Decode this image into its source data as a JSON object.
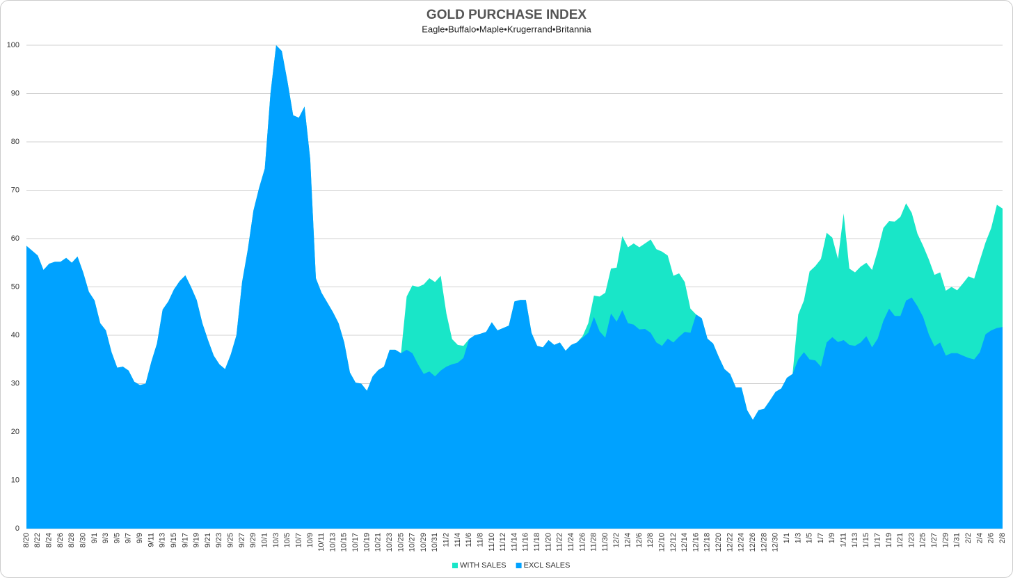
{
  "chart_data": {
    "type": "area",
    "title": "GOLD PURCHASE INDEX",
    "subtitle": "Eagle•Buffalo•Maple•Krugerrand•Britannia",
    "categories": [
      "8/20",
      null,
      "8/22",
      null,
      "8/24",
      null,
      "8/26",
      null,
      "8/28",
      null,
      "8/30",
      null,
      "9/1",
      null,
      "9/3",
      null,
      "9/5",
      null,
      "9/7",
      null,
      "9/9",
      null,
      "9/11",
      null,
      "9/13",
      null,
      "9/15",
      null,
      "9/17",
      null,
      "9/19",
      null,
      "9/21",
      null,
      "9/23",
      null,
      "9/25",
      null,
      "9/27",
      null,
      "9/29",
      null,
      "10/1",
      null,
      "10/3",
      null,
      "10/5",
      null,
      "10/7",
      null,
      "10/9",
      null,
      "10/11",
      null,
      "10/13",
      null,
      "10/15",
      null,
      "10/17",
      null,
      "10/19",
      null,
      "10/21",
      null,
      "10/23",
      null,
      "10/25",
      null,
      "10/27",
      null,
      "10/29",
      null,
      "10/31",
      null,
      "11/2",
      null,
      "11/4",
      null,
      "11/6",
      null,
      "11/8",
      null,
      "11/10",
      null,
      "11/12",
      null,
      "11/14",
      null,
      "11/16",
      null,
      "11/18",
      null,
      "11/20",
      null,
      "11/22",
      null,
      "11/24",
      null,
      "11/26",
      null,
      "11/28",
      null,
      "11/30",
      null,
      "12/2",
      null,
      "12/4",
      null,
      "12/6",
      null,
      "12/8",
      null,
      "12/10",
      null,
      "12/12",
      null,
      "12/14",
      null,
      "12/16",
      null,
      "12/18",
      null,
      "12/20",
      null,
      "12/22",
      null,
      "12/24",
      null,
      "12/26",
      null,
      "12/28",
      null,
      "12/30",
      null,
      "1/1",
      null,
      "1/3",
      null,
      "1/5",
      null,
      "1/7",
      null,
      "1/9",
      null,
      "1/11",
      null,
      "1/13",
      null,
      "1/15",
      null,
      "1/17",
      null,
      "1/19",
      null,
      "1/21",
      null,
      "1/23",
      null,
      "1/25",
      null,
      "1/27",
      null,
      "1/29",
      null,
      "1/31",
      null,
      "2/2",
      null,
      "2/4",
      null,
      "2/6",
      null,
      "2/8"
    ],
    "series": [
      {
        "name": "WITH SALES",
        "color": "#19e6c8",
        "values": [
          58.5,
          57.5,
          56.5,
          53.5,
          54.8,
          55.2,
          55.2,
          56,
          55,
          56.3,
          53,
          49,
          47.2,
          42.5,
          41,
          36.5,
          33.3,
          33.5,
          32.7,
          30.4,
          29.7,
          30,
          34.5,
          38.3,
          45.3,
          47,
          49.5,
          51.2,
          52.4,
          50,
          47.3,
          42.5,
          39,
          35.8,
          34,
          33,
          36,
          40,
          51,
          57.7,
          65.8,
          70.5,
          74.5,
          90,
          100,
          98.8,
          92.5,
          85.5,
          85,
          87.3,
          76.5,
          51.8,
          48.8,
          46.8,
          44.8,
          42.5,
          38.5,
          32.3,
          30.2,
          30,
          28.5,
          31.5,
          32.8,
          33.5,
          37,
          37,
          36.3,
          48,
          50.3,
          50,
          50.5,
          51.8,
          51,
          52.3,
          44.5,
          39.2,
          38,
          37.8,
          39.2,
          40,
          40.3,
          40.7,
          42.7,
          41,
          41.5,
          42,
          47,
          47.3,
          47.3,
          40.5,
          37.8,
          37.5,
          39,
          38,
          38.5,
          36.8,
          38,
          38.5,
          39.8,
          42.5,
          48.2,
          48,
          48.8,
          53.8,
          54,
          60.5,
          58.2,
          59,
          58.2,
          59,
          59.8,
          57.8,
          57.3,
          56.5,
          52.3,
          52.8,
          51,
          45.5,
          44.3,
          43.5,
          39.3,
          38.3,
          35.5,
          33,
          32,
          29.2,
          29.2,
          24.5,
          22.5,
          24.5,
          24.8,
          26.5,
          28.3,
          29,
          31.2,
          32,
          44.3,
          47.2,
          53.2,
          54.3,
          55.8,
          61.2,
          60.2,
          55.8,
          65.2,
          53.8,
          53,
          54.2,
          55,
          53.5,
          57.5,
          62.2,
          63.6,
          63.5,
          64.5,
          67.3,
          65.3,
          61,
          58.5,
          55.7,
          52.5,
          53,
          49.2,
          50,
          49.3,
          50.7,
          52.2,
          51.7,
          55.5,
          59.2,
          62.2,
          67,
          66.2
        ]
      },
      {
        "name": "EXCL SALES",
        "color": "#00a2ff",
        "values": [
          58.5,
          57.5,
          56.5,
          53.5,
          54.8,
          55.2,
          55.2,
          56,
          55,
          56.3,
          53,
          49,
          47.2,
          42.5,
          41,
          36.5,
          33.3,
          33.5,
          32.7,
          30.4,
          29.7,
          30,
          34.5,
          38.3,
          45.3,
          47,
          49.5,
          51.2,
          52.4,
          50,
          47.3,
          42.5,
          39,
          35.8,
          34,
          33,
          36,
          40,
          51,
          57.7,
          65.8,
          70.5,
          74.5,
          90,
          100,
          98.8,
          92.5,
          85.5,
          85,
          87.3,
          76.5,
          51.8,
          48.8,
          46.8,
          44.8,
          42.5,
          38.5,
          32.3,
          30.2,
          30,
          28.5,
          31.5,
          32.8,
          33.5,
          37,
          37,
          36.3,
          37,
          36.3,
          34,
          32,
          32.5,
          31.5,
          32.7,
          33.5,
          34,
          34.3,
          35.3,
          39.2,
          40,
          40.3,
          40.7,
          42.7,
          41,
          41.5,
          42,
          47,
          47.3,
          47.3,
          40.5,
          37.8,
          37.5,
          39,
          38,
          38.5,
          36.8,
          38,
          38.5,
          39.5,
          40.5,
          43.8,
          40.8,
          39.5,
          44.5,
          42.8,
          45.2,
          42.5,
          42.2,
          41.2,
          41.3,
          40.5,
          38.5,
          37.8,
          39.3,
          38.5,
          39.7,
          40.7,
          40.5,
          44.3,
          43.5,
          39.3,
          38.3,
          35.5,
          33,
          32,
          29.2,
          29.2,
          24.5,
          22.5,
          24.5,
          24.8,
          26.5,
          28.3,
          29,
          31.2,
          32,
          35,
          36.5,
          35,
          34.8,
          33.5,
          38.5,
          39.6,
          38.6,
          39,
          38,
          37.8,
          38.5,
          39.8,
          37.5,
          39.3,
          43,
          45.5,
          44,
          44,
          47.2,
          47.8,
          46,
          43.8,
          40.2,
          37.7,
          38.5,
          35.8,
          36.3,
          36.3,
          35.8,
          35.3,
          35,
          36.5,
          40.2,
          41,
          41.5,
          41.7
        ]
      }
    ],
    "ylim": [
      0,
      100
    ],
    "yticks": [
      0,
      10,
      20,
      30,
      40,
      50,
      60,
      70,
      80,
      90,
      100
    ],
    "grid": true,
    "legend": "bottom"
  }
}
